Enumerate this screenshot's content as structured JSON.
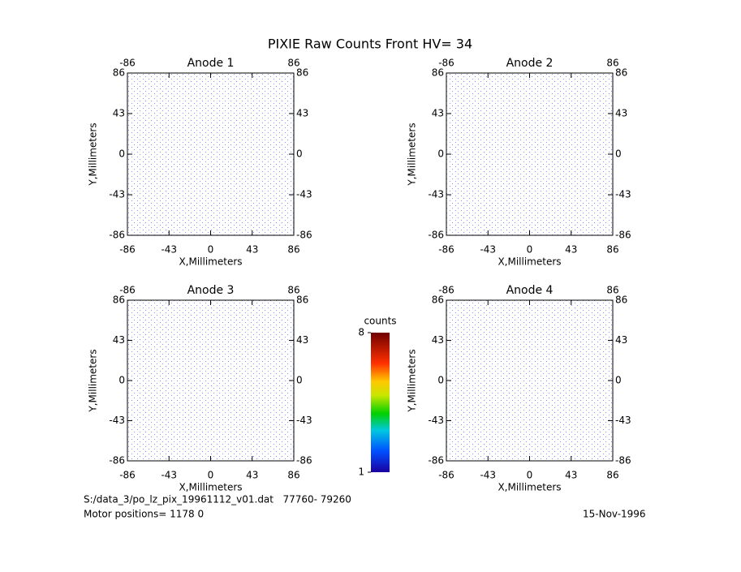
{
  "title": "PIXIE Raw Counts Front HV= 34",
  "chart_data": [
    {
      "type": "heatmap",
      "title": "Anode 1",
      "xlabel": "X,Millimeters",
      "ylabel": "Y,Millimeters",
      "xlim": [
        -86,
        86
      ],
      "ylim": [
        -86,
        86
      ],
      "xticks": [
        -86,
        -43,
        0,
        43,
        86
      ],
      "yticks": [
        -86,
        -43,
        0,
        43,
        86
      ]
    },
    {
      "type": "heatmap",
      "title": "Anode 2",
      "xlabel": "X,Millimeters",
      "ylabel": "Y,Millimeters",
      "xlim": [
        -86,
        86
      ],
      "ylim": [
        -86,
        86
      ],
      "xticks": [
        -86,
        -43,
        0,
        43,
        86
      ],
      "yticks": [
        -86,
        -43,
        0,
        43,
        86
      ]
    },
    {
      "type": "heatmap",
      "title": "Anode 3",
      "xlabel": "X,Millimeters",
      "ylabel": "Y,Millimeters",
      "xlim": [
        -86,
        86
      ],
      "ylim": [
        -86,
        86
      ],
      "xticks": [
        -86,
        -43,
        0,
        43,
        86
      ],
      "yticks": [
        -86,
        -43,
        0,
        43,
        86
      ]
    },
    {
      "type": "heatmap",
      "title": "Anode 4",
      "xlabel": "X,Millimeters",
      "ylabel": "Y,Millimeters",
      "xlim": [
        -86,
        86
      ],
      "ylim": [
        -86,
        86
      ],
      "xticks": [
        -86,
        -43,
        0,
        43,
        86
      ],
      "yticks": [
        -86,
        -43,
        0,
        43,
        86
      ]
    },
    {
      "type": "colorbar",
      "title": "counts",
      "ylim": [
        1,
        8
      ],
      "yticks": [
        1,
        8
      ]
    }
  ],
  "footer": {
    "file": "S:/data_3/po_lz_pix_19961112_v01.dat   77760- 79260",
    "motor": "Motor positions= 1178 0",
    "date": "15-Nov-1996"
  }
}
